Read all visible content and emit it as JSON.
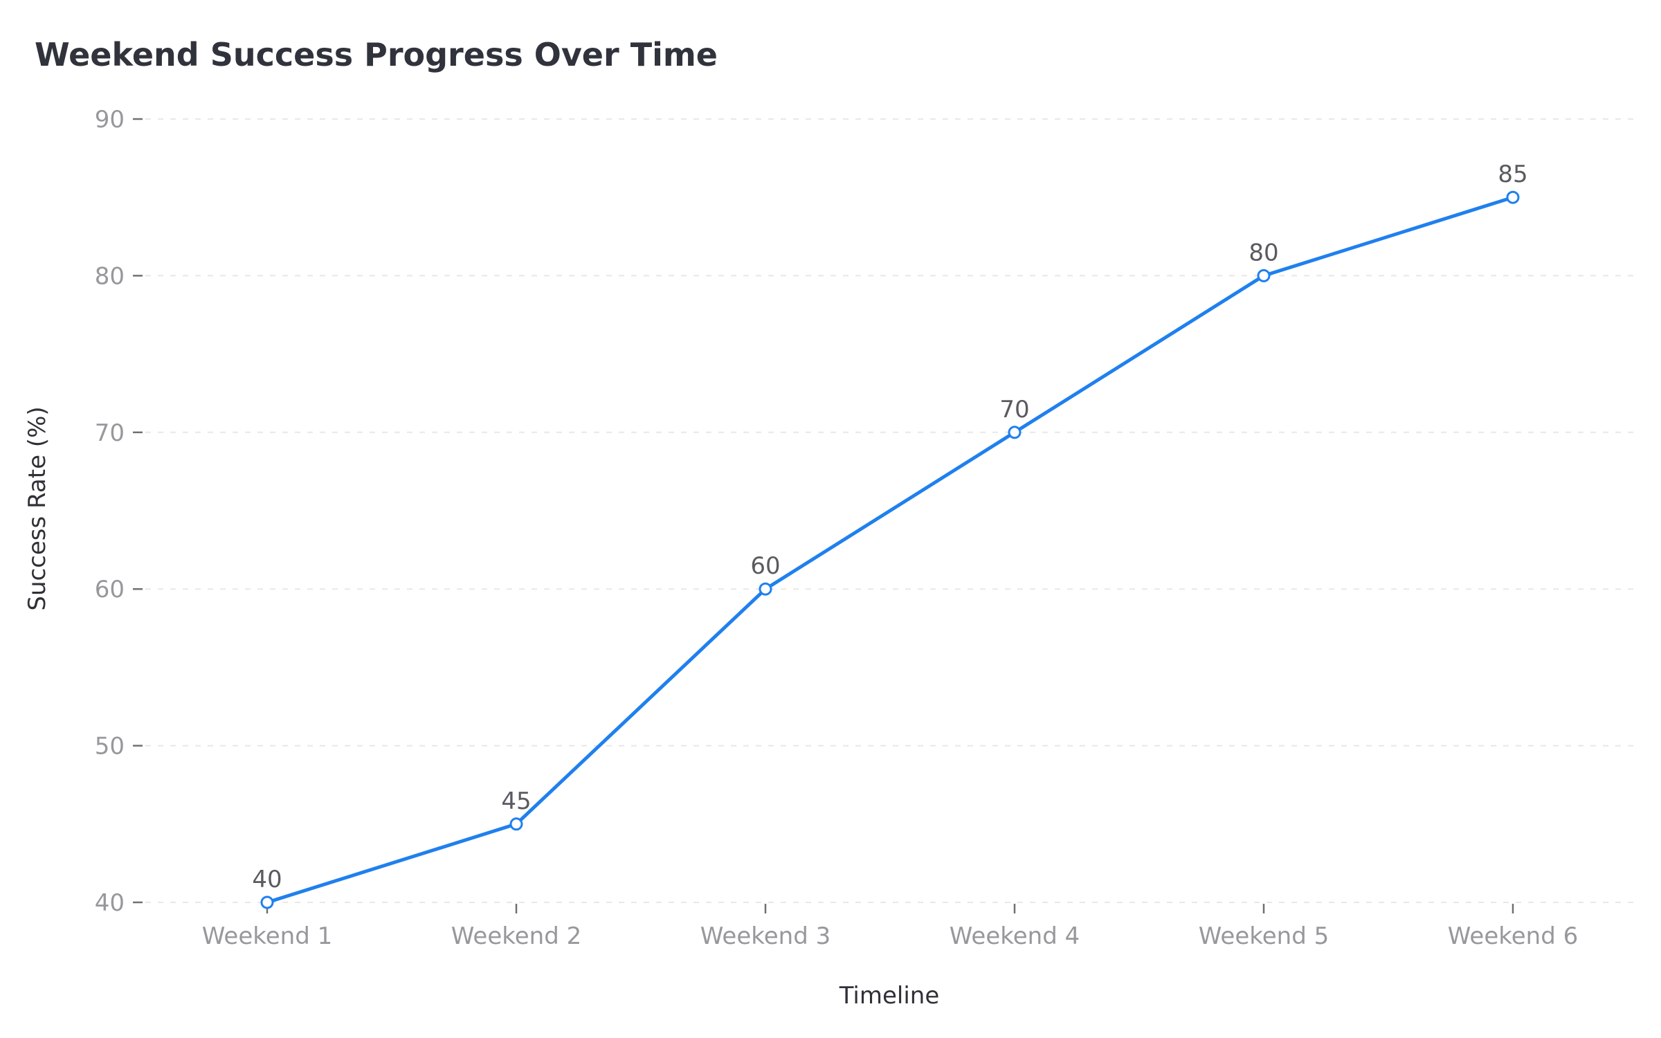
{
  "chart_data": {
    "type": "line",
    "title": "Weekend Success Progress Over Time",
    "xlabel": "Timeline",
    "ylabel": "Success Rate (%)",
    "categories": [
      "Weekend 1",
      "Weekend 2",
      "Weekend 3",
      "Weekend 4",
      "Weekend 5",
      "Weekend 6"
    ],
    "series": [
      {
        "values": [
          40,
          45,
          60,
          70,
          80,
          85
        ],
        "color": "#1f80ee"
      }
    ],
    "data_labels": [
      "40",
      "45",
      "60",
      "70",
      "80",
      "85"
    ],
    "ylim": [
      40,
      90
    ],
    "yticks": [
      40,
      50,
      60,
      70,
      80,
      90
    ],
    "grid": true,
    "legend": "none"
  }
}
